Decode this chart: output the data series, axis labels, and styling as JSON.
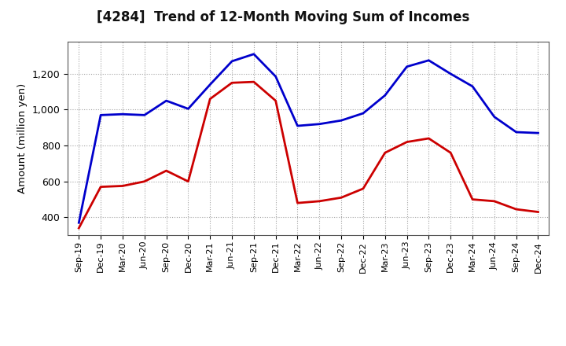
{
  "title": "[4284]  Trend of 12-Month Moving Sum of Incomes",
  "ylabel": "Amount (million yen)",
  "ylim": [
    300,
    1380
  ],
  "yticks": [
    400,
    600,
    800,
    1000,
    1200
  ],
  "background_color": "#ffffff",
  "grid_color": "#999999",
  "ordinary_income_color": "#0000cc",
  "net_income_color": "#cc0000",
  "line_width": 2.0,
  "labels": [
    "Sep-19",
    "Dec-19",
    "Mar-20",
    "Jun-20",
    "Sep-20",
    "Dec-20",
    "Mar-21",
    "Jun-21",
    "Sep-21",
    "Dec-21",
    "Mar-22",
    "Jun-22",
    "Sep-22",
    "Dec-22",
    "Mar-23",
    "Jun-23",
    "Sep-23",
    "Dec-23",
    "Mar-24",
    "Jun-24",
    "Sep-24",
    "Dec-24"
  ],
  "ordinary_income": [
    370,
    970,
    975,
    970,
    1050,
    1005,
    1140,
    1270,
    1310,
    1185,
    910,
    920,
    940,
    980,
    1080,
    1240,
    1275,
    1200,
    1130,
    960,
    875,
    870
  ],
  "net_income": [
    340,
    570,
    575,
    600,
    660,
    600,
    1060,
    1150,
    1155,
    1050,
    480,
    490,
    510,
    560,
    760,
    820,
    840,
    760,
    500,
    490,
    445,
    430
  ]
}
